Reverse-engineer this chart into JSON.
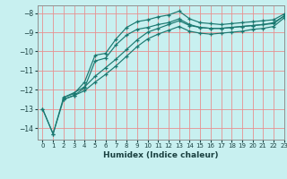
{
  "title": "",
  "xlabel": "Humidex (Indice chaleur)",
  "bg_color": "#c8f0f0",
  "line_color": "#1a7870",
  "grid_color_major": "#e89090",
  "xlim": [
    -0.5,
    23
  ],
  "ylim": [
    -14.6,
    -7.6
  ],
  "yticks": [
    -14,
    -13,
    -12,
    -11,
    -10,
    -9,
    -8
  ],
  "xticks": [
    0,
    1,
    2,
    3,
    4,
    5,
    6,
    7,
    8,
    9,
    10,
    11,
    12,
    13,
    14,
    15,
    16,
    17,
    18,
    19,
    20,
    21,
    22,
    23
  ],
  "line1_x": [
    0,
    1,
    2,
    3,
    4,
    5,
    6,
    7,
    8,
    9,
    10,
    11,
    12,
    13,
    14,
    15,
    16,
    17,
    18,
    19,
    20,
    21,
    22,
    23
  ],
  "line1_y": [
    -13.0,
    -14.3,
    -12.4,
    -12.2,
    -11.6,
    -10.2,
    -10.1,
    -9.35,
    -8.75,
    -8.45,
    -8.35,
    -8.2,
    -8.1,
    -7.9,
    -8.3,
    -8.5,
    -8.55,
    -8.6,
    -8.55,
    -8.5,
    -8.45,
    -8.4,
    -8.35,
    -8.05
  ],
  "line2_x": [
    0,
    1,
    2,
    3,
    4,
    5,
    6,
    7,
    8,
    9,
    10,
    11,
    12,
    13,
    14,
    15,
    16,
    17,
    18,
    19,
    20,
    21,
    22,
    23
  ],
  "line2_y": [
    -13.0,
    -14.3,
    -12.5,
    -12.3,
    -11.9,
    -10.5,
    -10.35,
    -9.65,
    -9.15,
    -8.85,
    -8.75,
    -8.6,
    -8.5,
    -8.3,
    -8.6,
    -8.75,
    -8.8,
    -8.8,
    -8.75,
    -8.7,
    -8.65,
    -8.6,
    -8.55,
    -8.15
  ],
  "line3_x": [
    2,
    3,
    4,
    5,
    6,
    7,
    8,
    9,
    10,
    11,
    12,
    13,
    14,
    15,
    16,
    17,
    18,
    19,
    20,
    21,
    22,
    23
  ],
  "line3_y": [
    -12.4,
    -12.15,
    -11.85,
    -11.3,
    -10.85,
    -10.4,
    -9.9,
    -9.4,
    -9.0,
    -8.8,
    -8.6,
    -8.4,
    -8.65,
    -8.75,
    -8.8,
    -8.8,
    -8.75,
    -8.7,
    -8.65,
    -8.6,
    -8.5,
    -8.15
  ],
  "line4_x": [
    2,
    3,
    4,
    5,
    6,
    7,
    8,
    9,
    10,
    11,
    12,
    13,
    14,
    15,
    16,
    17,
    18,
    19,
    20,
    21,
    22,
    23
  ],
  "line4_y": [
    -12.5,
    -12.3,
    -12.05,
    -11.6,
    -11.2,
    -10.75,
    -10.25,
    -9.75,
    -9.35,
    -9.1,
    -8.9,
    -8.7,
    -8.95,
    -9.05,
    -9.1,
    -9.05,
    -9.0,
    -8.95,
    -8.85,
    -8.8,
    -8.7,
    -8.25
  ]
}
